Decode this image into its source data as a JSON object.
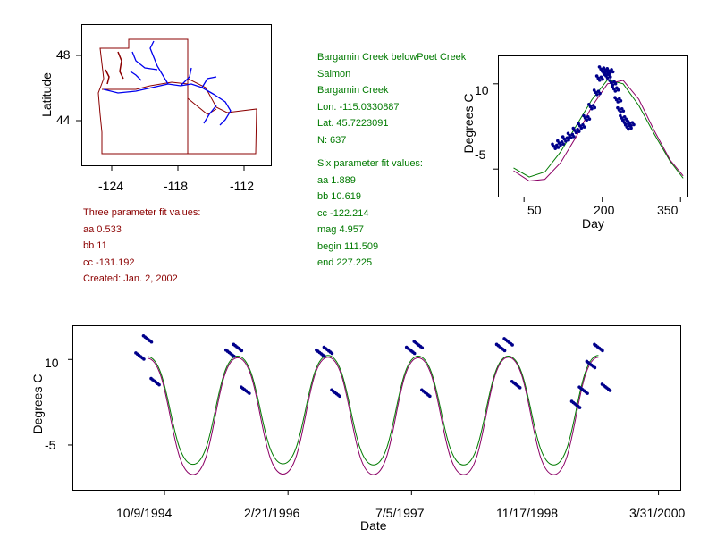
{
  "colors": {
    "border_red": "#8b0000",
    "river_blue": "#0000ee",
    "info_green": "#007a00",
    "fit6": "#007a00",
    "fit3": "#8b0066",
    "points": "#00008b"
  },
  "map": {
    "ylabel": "Latitude",
    "yticks": [
      "48",
      "44"
    ],
    "xticks": [
      "-124",
      "-118",
      "-112"
    ]
  },
  "site": {
    "lines": [
      "Bargamin Creek belowPoet Creek",
      "Salmon",
      "Bargamin Creek",
      "Lon. -115.0330887",
      "Lat. 45.7223091",
      "N: 637"
    ]
  },
  "six_fit": {
    "lines": [
      "Six parameter fit values:",
      "aa 1.889",
      "bb 10.619",
      "cc -122.214",
      "mag 4.957",
      "begin 111.509",
      "end 227.225"
    ]
  },
  "three_fit": {
    "lines": [
      "Three parameter fit values:",
      "aa 0.533",
      "bb 11",
      "cc -131.192",
      "Created:   Jan. 2, 2002"
    ]
  },
  "day_chart": {
    "ylabel": "Degrees C",
    "xlabel": "Day",
    "yticks": [
      "10",
      "-5"
    ],
    "xticks": [
      "50",
      "200",
      "350"
    ]
  },
  "time_chart": {
    "ylabel": "Degrees C",
    "xlabel": "Date",
    "yticks": [
      "10",
      "-5"
    ],
    "xticks": [
      "10/9/1994",
      "2/21/1996",
      "7/5/1997",
      "11/17/1998",
      "3/31/2000"
    ]
  },
  "chart_data": [
    {
      "type": "line",
      "title": "",
      "xlabel": "Day",
      "ylabel": "Degrees C",
      "xlim": [
        0,
        365
      ],
      "ylim": [
        -10,
        15
      ],
      "series": [
        {
          "kind": "six_parameter_fit",
          "x": [
            30,
            60,
            90,
            120,
            150,
            180,
            210,
            240,
            270,
            300,
            330,
            355
          ],
          "y": [
            -4.8,
            -6.4,
            -5.5,
            -2.0,
            2.6,
            7.2,
            10.7,
            10.0,
            6.2,
            1.1,
            -3.6,
            -6.6
          ]
        },
        {
          "kind": "three_parameter_fit",
          "x": [
            30,
            60,
            90,
            120,
            150,
            180,
            210,
            240,
            270,
            300,
            330,
            355
          ],
          "y": [
            -5.3,
            -7.1,
            -6.8,
            -3.9,
            0.7,
            6.0,
            10.0,
            10.6,
            7.3,
            1.7,
            -3.4,
            -6.2
          ]
        },
        {
          "kind": "observations",
          "x": [
            110,
            120,
            130,
            140,
            150,
            160,
            170,
            180,
            190,
            195,
            200,
            205,
            210,
            215,
            220,
            225,
            230,
            235,
            240,
            245,
            250,
            255
          ],
          "y": [
            -1.0,
            -0.4,
            0.3,
            0.9,
            1.8,
            2.6,
            4.0,
            6.0,
            8.5,
            11.0,
            12.6,
            12.0,
            11.4,
            12.3,
            10.2,
            9.1,
            7.2,
            5.4,
            4.0,
            3.2,
            2.4,
            3.0
          ]
        }
      ]
    },
    {
      "type": "line",
      "title": "",
      "xlabel": "Date",
      "ylabel": "Degrees C",
      "xticks": [
        "10/9/1994",
        "2/21/1996",
        "7/5/1997",
        "11/17/1998",
        "3/31/2000"
      ],
      "ylim": [
        -13,
        16
      ],
      "series": [
        {
          "kind": "six_parameter_fit",
          "x": [
            "1994-08-01",
            "1995-02-01",
            "1995-08-01",
            "1996-02-01",
            "1996-08-01",
            "1997-02-01",
            "1997-08-01",
            "1998-02-01",
            "1998-08-01",
            "1999-02-01",
            "1999-08-01"
          ],
          "y": [
            10.5,
            -8.4,
            10.6,
            -8.3,
            10.7,
            -8.5,
            10.6,
            -8.5,
            10.6,
            -8.5,
            10.7
          ]
        },
        {
          "kind": "three_parameter_fit",
          "x": [
            "1994-08-01",
            "1995-02-01",
            "1995-08-01",
            "1996-02-01",
            "1996-08-01",
            "1997-02-01",
            "1997-08-01",
            "1998-02-01",
            "1998-08-01",
            "1999-02-01",
            "1999-08-01"
          ],
          "y": [
            10.2,
            -10.2,
            10.3,
            -10.1,
            10.4,
            -10.2,
            10.3,
            -10.2,
            10.4,
            -10.2,
            10.4
          ]
        },
        {
          "kind": "observations",
          "x": [
            "1994-07",
            "1994-08",
            "1994-09",
            "1995-07",
            "1995-08",
            "1995-09",
            "1996-07",
            "1996-08",
            "1996-09",
            "1997-07",
            "1997-08",
            "1997-09",
            "1998-07",
            "1998-08",
            "1998-09",
            "1999-05",
            "1999-06",
            "1999-07",
            "1999-08",
            "1999-09"
          ],
          "y": [
            10.5,
            13.5,
            6.0,
            11.0,
            12.0,
            4.5,
            11.0,
            11.5,
            4.0,
            11.5,
            12.5,
            4.0,
            12.0,
            13.0,
            5.5,
            2.0,
            4.5,
            9.0,
            12.0,
            5.0
          ]
        }
      ]
    }
  ]
}
